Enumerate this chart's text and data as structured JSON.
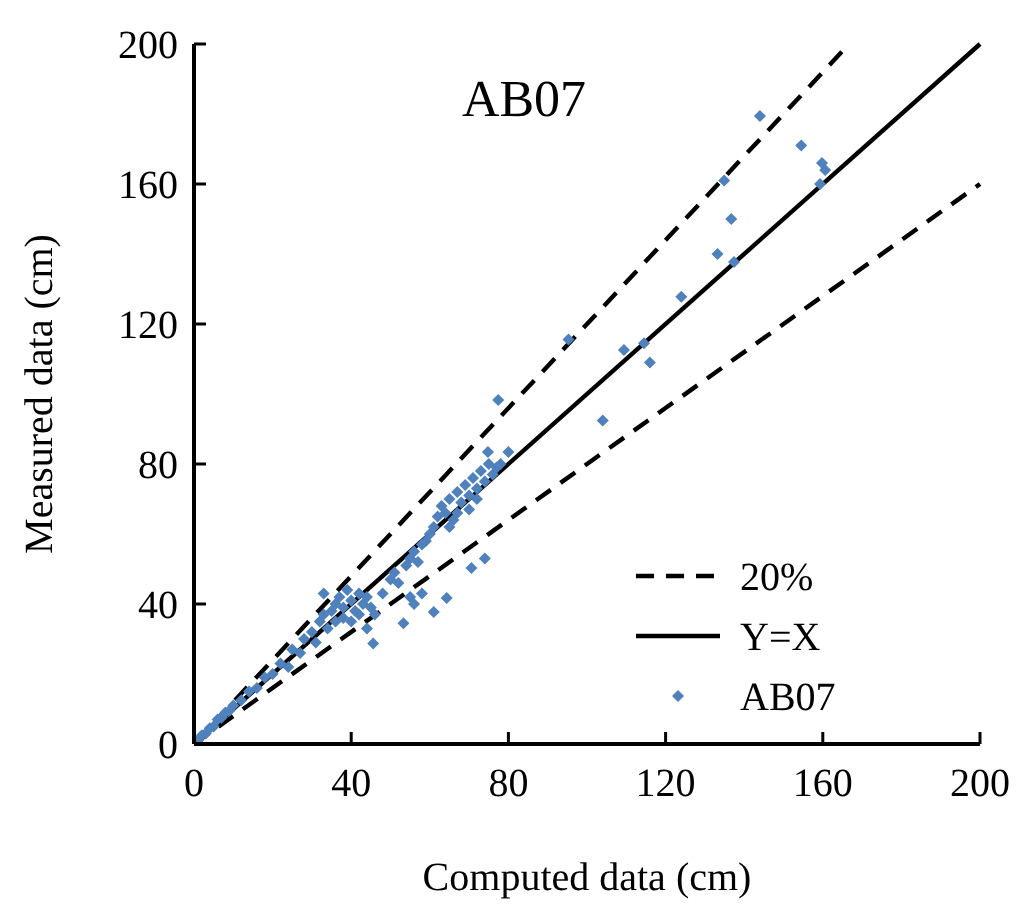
{
  "chart_data": {
    "type": "scatter",
    "title": "AB07",
    "xlabel": "Computed data (cm)",
    "ylabel": "Measured data (cm)",
    "xlim": [
      0,
      200
    ],
    "ylim": [
      0,
      200
    ],
    "xticks": [
      0,
      40,
      80,
      120,
      160,
      200
    ],
    "yticks": [
      0,
      40,
      80,
      120,
      160,
      200
    ],
    "grid": false,
    "legend": "bottom right",
    "series": [
      {
        "name": "20%",
        "type": "line",
        "line_style": "dashed",
        "color": "#000000",
        "x": [
          0,
          166.7,
          null,
          0,
          200
        ],
        "values": [
          0,
          200,
          null,
          0,
          160
        ]
      },
      {
        "name": "Y=X",
        "type": "line",
        "line_style": "solid",
        "color": "#000000",
        "x": [
          0,
          200
        ],
        "values": [
          0,
          200
        ]
      },
      {
        "name": "AB07",
        "marker": "diamond",
        "color": "#4f81bd",
        "x": [
          1,
          2,
          3,
          4,
          5,
          6,
          7,
          8,
          9,
          10,
          12,
          14,
          16,
          18,
          20,
          22,
          24,
          25,
          27,
          28,
          30,
          31,
          32,
          33,
          34,
          35,
          36,
          37,
          38,
          39,
          40,
          41,
          42,
          43,
          44,
          45,
          36,
          38,
          40,
          42,
          33,
          45.6,
          44,
          46,
          48,
          50,
          51,
          52,
          54,
          55,
          56,
          57,
          58,
          59,
          60,
          53.3,
          56,
          58,
          55,
          61,
          64.3,
          70.6,
          74,
          61,
          62,
          63,
          64,
          65,
          66,
          67,
          68,
          69,
          70,
          71,
          72,
          73,
          74,
          75,
          76,
          77,
          78,
          65,
          67,
          70,
          72,
          80,
          74.8,
          77.4,
          104,
          95.3,
          109.4,
          114.5,
          116,
          124,
          133.2,
          137.4,
          136.7,
          134.9,
          144,
          154.5,
          159.8,
          160.6,
          159.3
        ],
        "values": [
          1,
          2.5,
          3,
          4.5,
          5,
          7,
          7.5,
          9,
          9.5,
          11,
          12.5,
          15,
          16,
          19,
          20,
          23,
          22,
          27,
          26,
          30,
          32,
          29,
          35,
          37,
          33,
          38,
          40,
          42,
          39,
          44,
          41,
          38,
          43,
          40,
          42,
          39,
          35,
          36,
          35,
          37,
          43,
          28.7,
          33,
          37,
          43,
          47,
          49,
          46,
          51,
          53,
          55,
          52,
          57,
          58,
          60,
          34.5,
          40,
          43,
          42,
          37.7,
          41.7,
          50.3,
          53,
          62,
          65,
          68,
          66,
          70,
          64,
          72,
          69,
          74,
          71,
          76,
          73,
          78,
          75,
          80,
          77,
          79,
          80,
          62,
          66,
          67,
          70,
          83.4,
          83.4,
          98.3,
          92.4,
          115.6,
          112.6,
          114.5,
          109,
          127.8,
          140,
          137.7,
          150,
          161,
          179.4,
          171,
          166,
          164,
          160
        ]
      }
    ]
  }
}
